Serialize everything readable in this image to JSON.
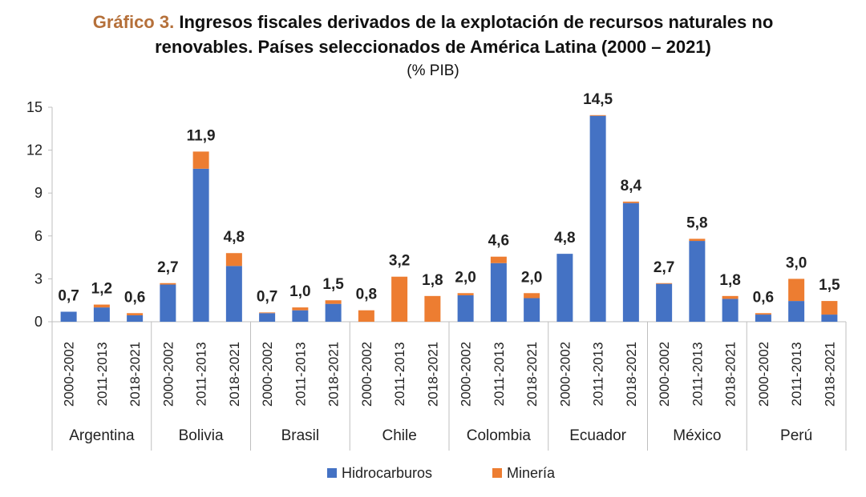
{
  "title": {
    "prefix": "Gráfico 3.",
    "line1": "Ingresos fiscales derivados de la explotación de recursos naturales no",
    "line2": "renovables. Países seleccionados de América Latina (2000 – 2021)"
  },
  "subtitle": "(% PIB)",
  "colors": {
    "hidrocarburos": "#4472c4",
    "mineria": "#ed7d31"
  },
  "chart_data": {
    "type": "bar",
    "stacked": true,
    "ylim": [
      0,
      15
    ],
    "yticks": [
      0,
      3,
      6,
      9,
      12,
      15
    ],
    "grid": false,
    "legend_position": "bottom",
    "periods": [
      "2000-2002",
      "2011-2013",
      "2018-2021"
    ],
    "groups": [
      {
        "country": "Argentina",
        "totals": [
          "0,7",
          "1,2",
          "0,6"
        ],
        "hidrocarburos": [
          0.7,
          1.0,
          0.45
        ],
        "mineria": [
          0.0,
          0.2,
          0.15
        ]
      },
      {
        "country": "Bolivia",
        "totals": [
          "2,7",
          "11,9",
          "4,8"
        ],
        "hidrocarburos": [
          2.6,
          10.7,
          3.9
        ],
        "mineria": [
          0.1,
          1.2,
          0.9
        ]
      },
      {
        "country": "Brasil",
        "totals": [
          "0,7",
          "1,0",
          "1,5"
        ],
        "hidrocarburos": [
          0.6,
          0.8,
          1.25
        ],
        "mineria": [
          0.05,
          0.2,
          0.25
        ]
      },
      {
        "country": "Chile",
        "totals": [
          "0,8",
          "3,2",
          "1,8"
        ],
        "hidrocarburos": [
          0.0,
          0.0,
          0.0
        ],
        "mineria": [
          0.8,
          3.15,
          1.8
        ]
      },
      {
        "country": "Colombia",
        "totals": [
          "2,0",
          "4,6",
          "2,0"
        ],
        "hidrocarburos": [
          1.85,
          4.1,
          1.65
        ],
        "mineria": [
          0.15,
          0.45,
          0.35
        ]
      },
      {
        "country": "Ecuador",
        "totals": [
          "4,8",
          "14,5",
          "8,4"
        ],
        "hidrocarburos": [
          4.75,
          14.4,
          8.3
        ],
        "mineria": [
          0.0,
          0.05,
          0.1
        ]
      },
      {
        "country": "México",
        "totals": [
          "2,7",
          "5,8",
          "1,8"
        ],
        "hidrocarburos": [
          2.65,
          5.65,
          1.6
        ],
        "mineria": [
          0.05,
          0.15,
          0.2
        ]
      },
      {
        "country": "Perú",
        "totals": [
          "0,6",
          "3,0",
          "1,5"
        ],
        "hidrocarburos": [
          0.5,
          1.45,
          0.5
        ],
        "mineria": [
          0.1,
          1.55,
          0.95
        ]
      }
    ],
    "series": [
      {
        "name": "Hidrocarburos",
        "key": "hidrocarburos"
      },
      {
        "name": "Minería",
        "key": "mineria"
      }
    ]
  }
}
